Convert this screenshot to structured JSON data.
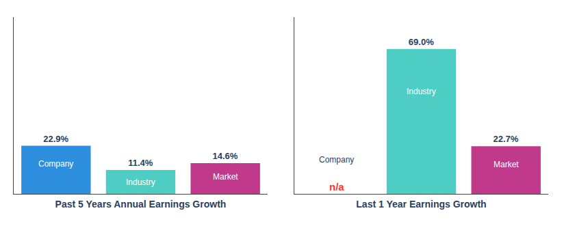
{
  "chart_data": [
    {
      "type": "bar",
      "title": "Past 5 Years Annual Earnings Growth",
      "categories": [
        "Company",
        "Industry",
        "Market"
      ],
      "values": [
        22.9,
        11.4,
        14.6
      ],
      "value_labels": [
        "22.9%",
        "11.4%",
        "14.6%"
      ],
      "colors": [
        "#2d8fdd",
        "#4ecdc4",
        "#c0398a"
      ],
      "ylim": [
        0,
        84.18
      ],
      "yticks": [],
      "data_labels": true,
      "tick_labels": false,
      "grid": false
    },
    {
      "type": "bar",
      "title": "Last 1 Year Earnings Growth",
      "categories": [
        "Company",
        "Industry",
        "Market"
      ],
      "values": [
        null,
        69.0,
        22.7
      ],
      "value_labels": [
        "n/a",
        "69.0%",
        "22.7%"
      ],
      "colors": [
        "#ff3333",
        "#4ecdc4",
        "#c0398a"
      ],
      "ylim": [
        0,
        84.18
      ],
      "yticks": [],
      "data_labels": true,
      "tick_labels": false,
      "grid": false
    }
  ]
}
